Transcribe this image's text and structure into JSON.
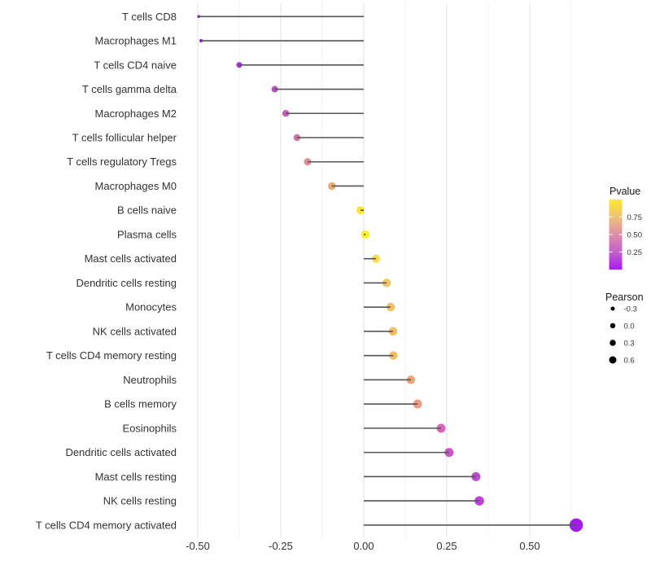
{
  "figure": {
    "legend_pvalue_title": "Pvalue",
    "legend_pearson_title": "Pearson"
  },
  "chart_data": {
    "type": "lollipop",
    "orientation": "horizontal",
    "title": "",
    "xlabel": "",
    "ylabel": "",
    "xlim": [
      -0.55,
      0.68
    ],
    "grid": "vertical-only",
    "legend_position": "right",
    "background": "#FFFFFF",
    "stem_color": "#555555",
    "x_major_ticks": [
      -0.5,
      -0.25,
      0.0,
      0.25,
      0.5
    ],
    "x_tick_labels": [
      "-0.50",
      "-0.25",
      "0.00",
      "0.25",
      "0.50"
    ],
    "x_minor_ticks": [
      -0.375,
      -0.125,
      0.125,
      0.375,
      0.625
    ],
    "rows": [
      {
        "label": "T cells CD8",
        "pearson": -0.497,
        "pvalue": 0.01,
        "color": "#8812D4",
        "diameter": 3.5
      },
      {
        "label": "Macrophages M1",
        "pearson": -0.49,
        "pvalue": 0.02,
        "color": "#8A14D4",
        "diameter": 4
      },
      {
        "label": "T cells CD4 naive",
        "pearson": -0.375,
        "pvalue": 0.1,
        "color": "#A433D9",
        "diameter": 7
      },
      {
        "label": "T cells gamma delta",
        "pearson": -0.268,
        "pvalue": 0.22,
        "color": "#BB4EC6",
        "diameter": 8
      },
      {
        "label": "Macrophages M2",
        "pearson": -0.235,
        "pvalue": 0.28,
        "color": "#C75DBB",
        "diameter": 8.5
      },
      {
        "label": "T cells follicular helper",
        "pearson": -0.201,
        "pvalue": 0.35,
        "color": "#D173AA",
        "diameter": 8.5
      },
      {
        "label": "T cells regulatory  Tregs",
        "pearson": -0.169,
        "pvalue": 0.45,
        "color": "#DC8D96",
        "diameter": 9
      },
      {
        "label": "Macrophages M0",
        "pearson": -0.096,
        "pvalue": 0.63,
        "color": "#EAAC6C",
        "diameter": 9.5
      },
      {
        "label": "B cells naive",
        "pearson": -0.01,
        "pvalue": 0.97,
        "color": "#FAE92E",
        "diameter": 10
      },
      {
        "label": "Plasma cells",
        "pearson": 0.005,
        "pvalue": 0.98,
        "color": "#FBEC26",
        "diameter": 10
      },
      {
        "label": "Mast cells activated",
        "pearson": 0.037,
        "pvalue": 0.9,
        "color": "#F8DE4D",
        "diameter": 10
      },
      {
        "label": "Dendritic cells resting",
        "pearson": 0.069,
        "pvalue": 0.78,
        "color": "#F2C566",
        "diameter": 10.5
      },
      {
        "label": "Monocytes",
        "pearson": 0.081,
        "pvalue": 0.74,
        "color": "#F1BF64",
        "diameter": 10.5
      },
      {
        "label": "NK cells activated",
        "pearson": 0.088,
        "pvalue": 0.73,
        "color": "#F1BD66",
        "diameter": 10.5
      },
      {
        "label": "T cells CD4 memory resting",
        "pearson": 0.089,
        "pvalue": 0.73,
        "color": "#F1BD66",
        "diameter": 10.5
      },
      {
        "label": "Neutrophils",
        "pearson": 0.142,
        "pvalue": 0.58,
        "color": "#EEA575",
        "diameter": 10.5
      },
      {
        "label": "B cells memory",
        "pearson": 0.162,
        "pvalue": 0.54,
        "color": "#EC9C80",
        "diameter": 11
      },
      {
        "label": "Eosinophils",
        "pearson": 0.233,
        "pvalue": 0.3,
        "color": "#D568B8",
        "diameter": 11
      },
      {
        "label": "Dendritic cells activated",
        "pearson": 0.257,
        "pvalue": 0.26,
        "color": "#CB54C4",
        "diameter": 11
      },
      {
        "label": "Mast cells resting",
        "pearson": 0.338,
        "pvalue": 0.15,
        "color": "#BC49D4",
        "diameter": 11
      },
      {
        "label": "NK cells resting",
        "pearson": 0.348,
        "pvalue": 0.14,
        "color": "#B941D9",
        "diameter": 11.5
      },
      {
        "label": "T cells CD4 memory activated",
        "pearson": 0.64,
        "pvalue": 0.02,
        "color": "#A21BEB",
        "diameter": 16.5
      }
    ],
    "color_legend": {
      "title": "Pvalue",
      "range": [
        0,
        1
      ],
      "ticks": [
        0.75,
        0.5,
        0.25
      ],
      "tick_labels": [
        "0.75",
        "0.50",
        "0.25"
      ],
      "gradient_top_to_bottom": [
        "#FBEB24",
        "#EFC178",
        "#DE8FA9",
        "#C45FC9",
        "#A81CF0"
      ]
    },
    "size_legend": {
      "title": "Pearson",
      "values": [
        -0.3,
        0.0,
        0.3,
        0.6
      ],
      "labels": [
        "-0.3",
        "0.0",
        "0.3",
        "0.6"
      ],
      "diameters": [
        5,
        6.5,
        7.5,
        9
      ],
      "dot_color": "#000000"
    }
  }
}
